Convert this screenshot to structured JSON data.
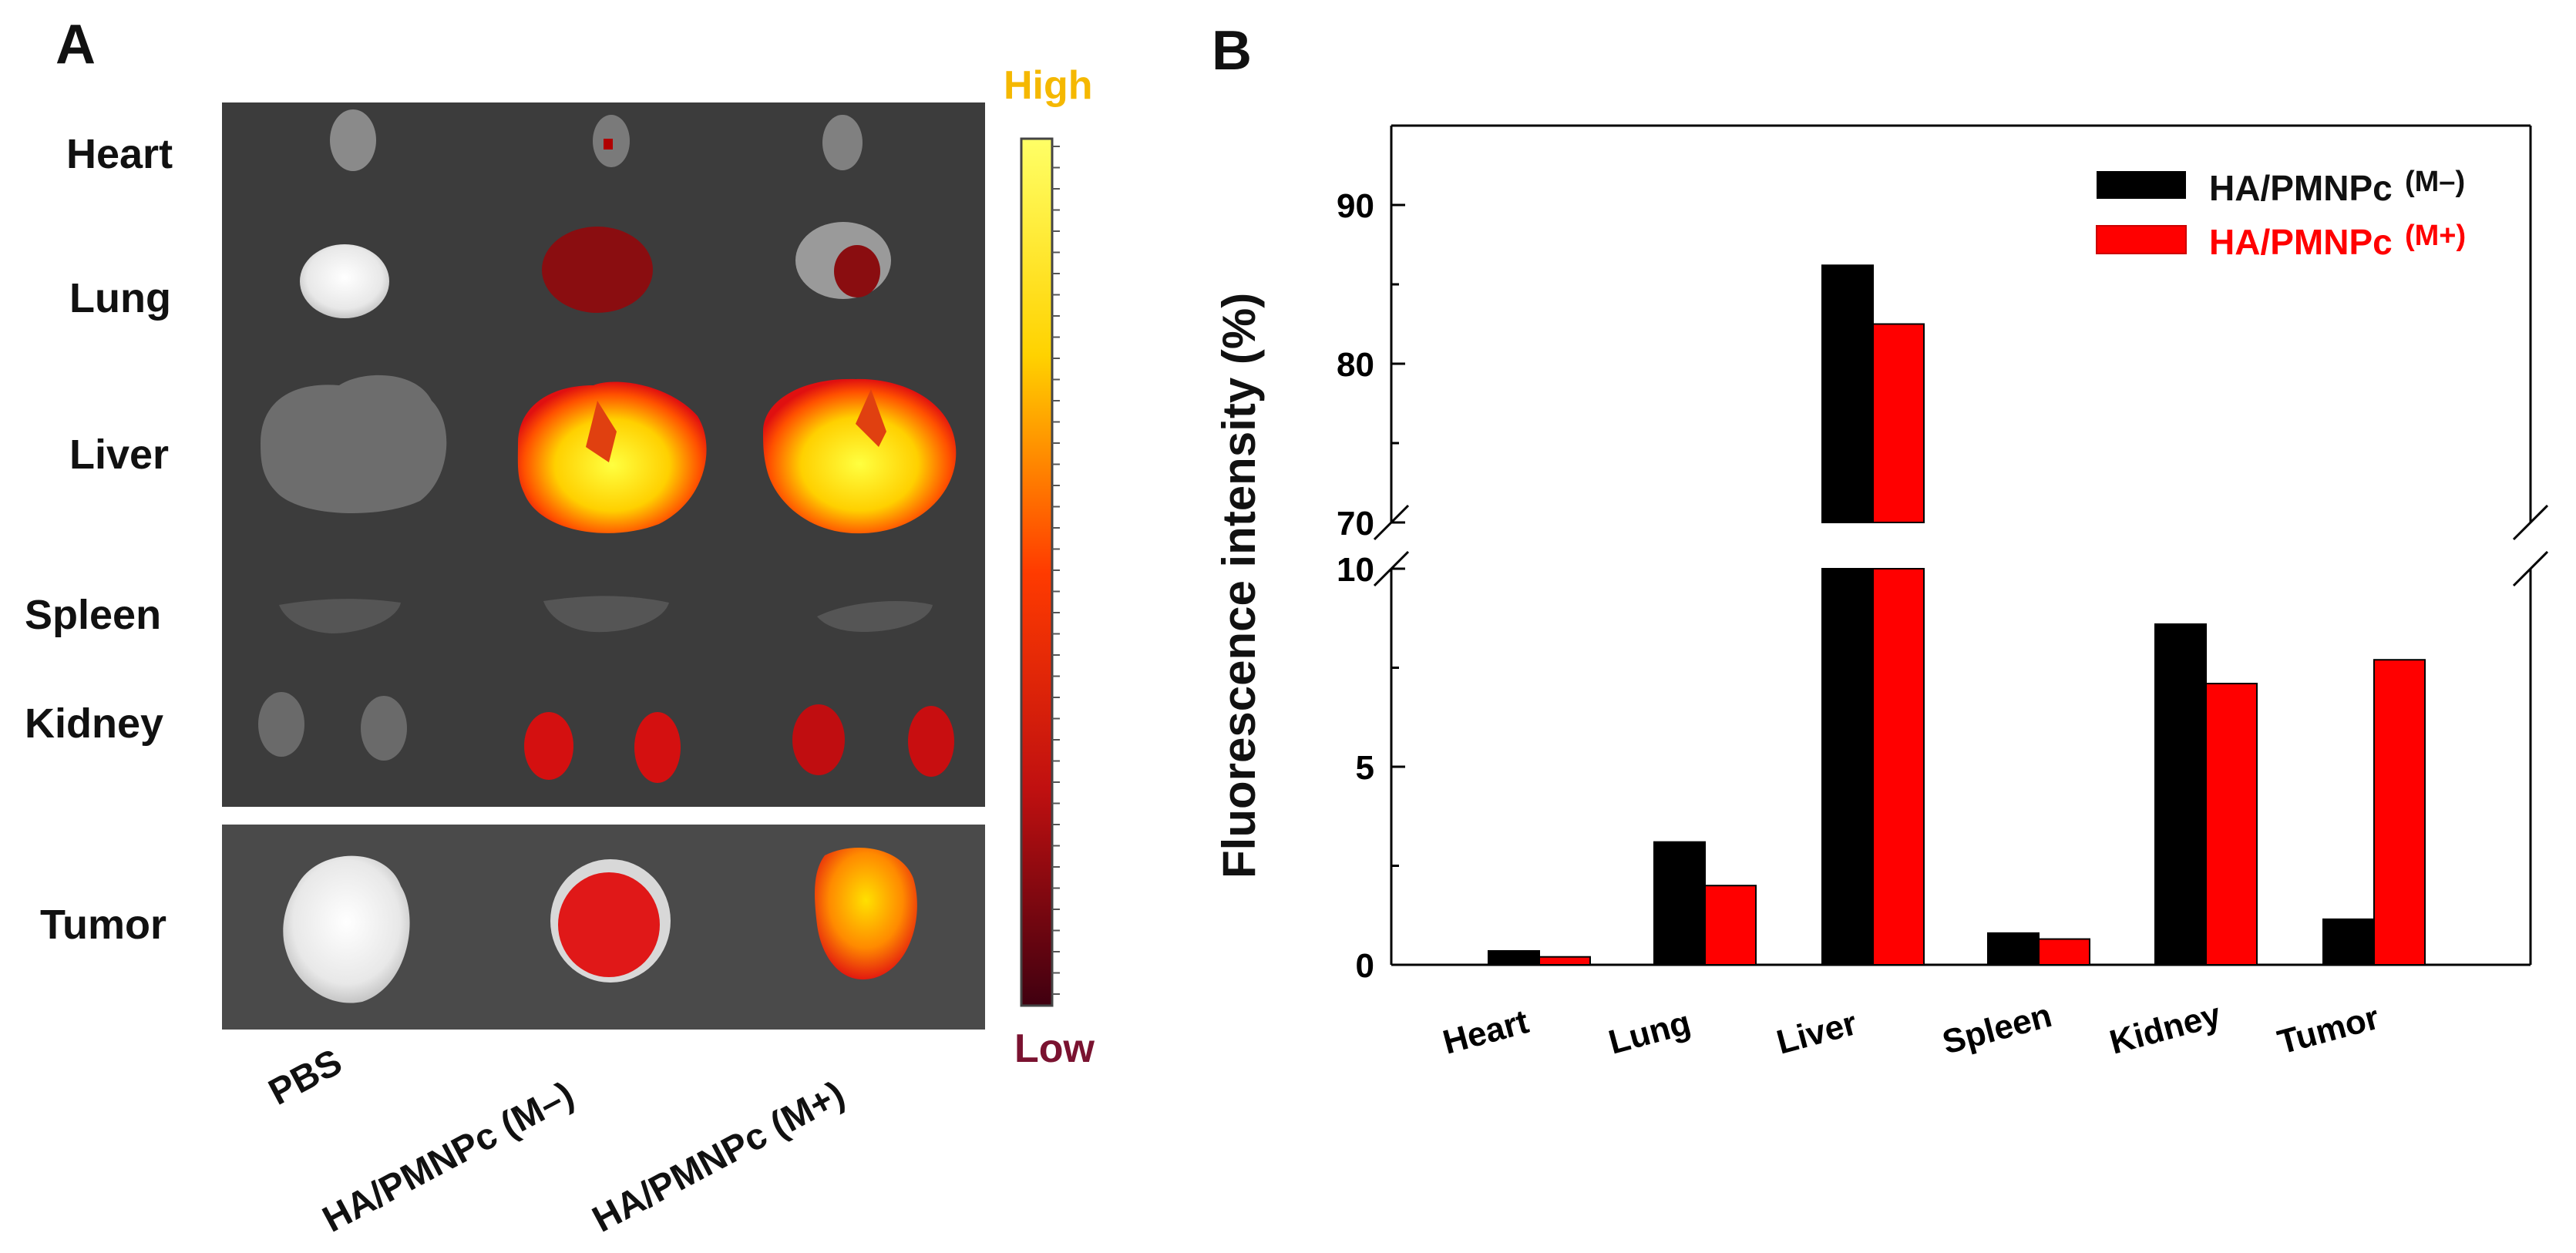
{
  "panel_a": {
    "label": "A",
    "organ_labels": [
      "Heart",
      "Lung",
      "Liver",
      "Spleen",
      "Kidney",
      "Tumor"
    ],
    "group_labels": [
      "PBS",
      "HA/PMNPc (M–)",
      "HA/PMNPc (M+)"
    ],
    "scale": {
      "high": "High",
      "low": "Low"
    }
  },
  "panel_b": {
    "label": "B"
  },
  "colors": {
    "m_minus": "#000000",
    "m_plus": "#ff0000",
    "high_text": "#f5b800",
    "low_text": "#7a1230"
  },
  "chart_data": {
    "type": "bar",
    "categories": [
      "Heart",
      "Lung",
      "Liver",
      "Spleen",
      "Kidney",
      "Tumor"
    ],
    "series": [
      {
        "name": "HA/PMNPc",
        "tag": "(M–)",
        "values": [
          0.35,
          3.1,
          86.2,
          0.8,
          8.6,
          1.15
        ]
      },
      {
        "name": "HA/PMNPc",
        "tag": "(M+)",
        "values": [
          0.2,
          2.0,
          82.5,
          0.65,
          7.1,
          7.7
        ]
      }
    ],
    "ylabel": "Fluorescence intensity (%)",
    "xlabel": "",
    "y_break": {
      "lower": [
        0,
        10
      ],
      "upper": [
        70,
        95
      ]
    },
    "yticks_lower": [
      "0",
      "5",
      "10"
    ],
    "yticks_upper": [
      "70",
      "80",
      "90"
    ],
    "legend_position": "top-right"
  }
}
